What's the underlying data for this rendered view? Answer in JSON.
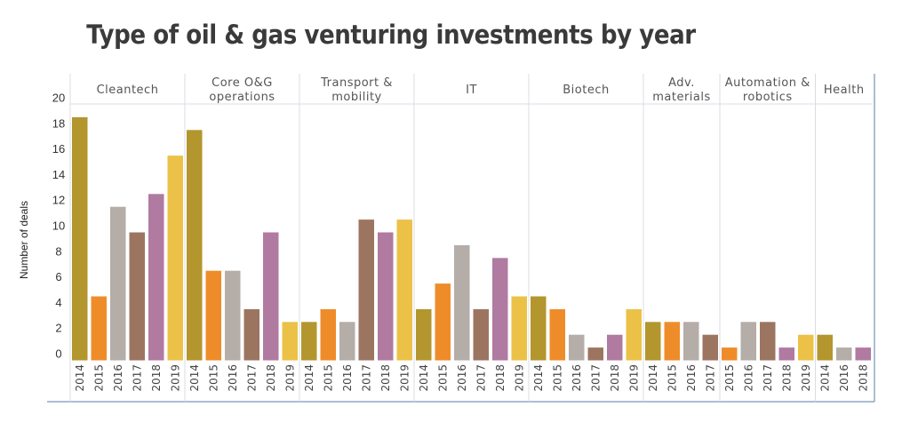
{
  "chart_data": {
    "type": "bar",
    "title": "Type of oil & gas venturing investments by year",
    "ylabel": "Number of deals",
    "xlabel": "",
    "ylim": [
      0,
      20
    ],
    "yticks": [
      0,
      2,
      4,
      6,
      8,
      10,
      12,
      14,
      16,
      18,
      20
    ],
    "year_colors": {
      "2014": "#b3962e",
      "2015": "#ef8c2a",
      "2016": "#b5ada8",
      "2017": "#9c7560",
      "2018": "#b07aa1",
      "2019": "#ebc247"
    },
    "groups": [
      {
        "name": "Cleantech",
        "years": [
          "2014",
          "2015",
          "2016",
          "2017",
          "2018",
          "2019"
        ],
        "values": [
          19,
          5,
          12,
          10,
          13,
          16
        ]
      },
      {
        "name": "Core O&G\noperations",
        "years": [
          "2014",
          "2015",
          "2016",
          "2017",
          "2018",
          "2019"
        ],
        "values": [
          18,
          7,
          7,
          4,
          10,
          3
        ]
      },
      {
        "name": "Transport &\nmobility",
        "years": [
          "2014",
          "2015",
          "2016",
          "2017",
          "2018",
          "2019"
        ],
        "values": [
          3,
          4,
          3,
          11,
          10,
          11
        ]
      },
      {
        "name": "IT",
        "years": [
          "2014",
          "2015",
          "2016",
          "2017",
          "2018",
          "2019"
        ],
        "values": [
          4,
          6,
          9,
          4,
          8,
          5
        ]
      },
      {
        "name": "Biotech",
        "years": [
          "2014",
          "2015",
          "2016",
          "2017",
          "2018",
          "2019"
        ],
        "values": [
          5,
          4,
          2,
          1,
          2,
          4
        ]
      },
      {
        "name": "Adv.\nmaterials",
        "years": [
          "2014",
          "2015",
          "2016",
          "2017"
        ],
        "values": [
          3,
          3,
          3,
          2
        ]
      },
      {
        "name": "Automation &\nrobotics",
        "years": [
          "2015",
          "2016",
          "2017",
          "2018",
          "2019"
        ],
        "values": [
          1,
          3,
          3,
          1,
          2
        ]
      },
      {
        "name": "Health",
        "years": [
          "2014",
          "2016",
          "2018"
        ],
        "values": [
          2,
          1,
          1
        ]
      }
    ]
  }
}
